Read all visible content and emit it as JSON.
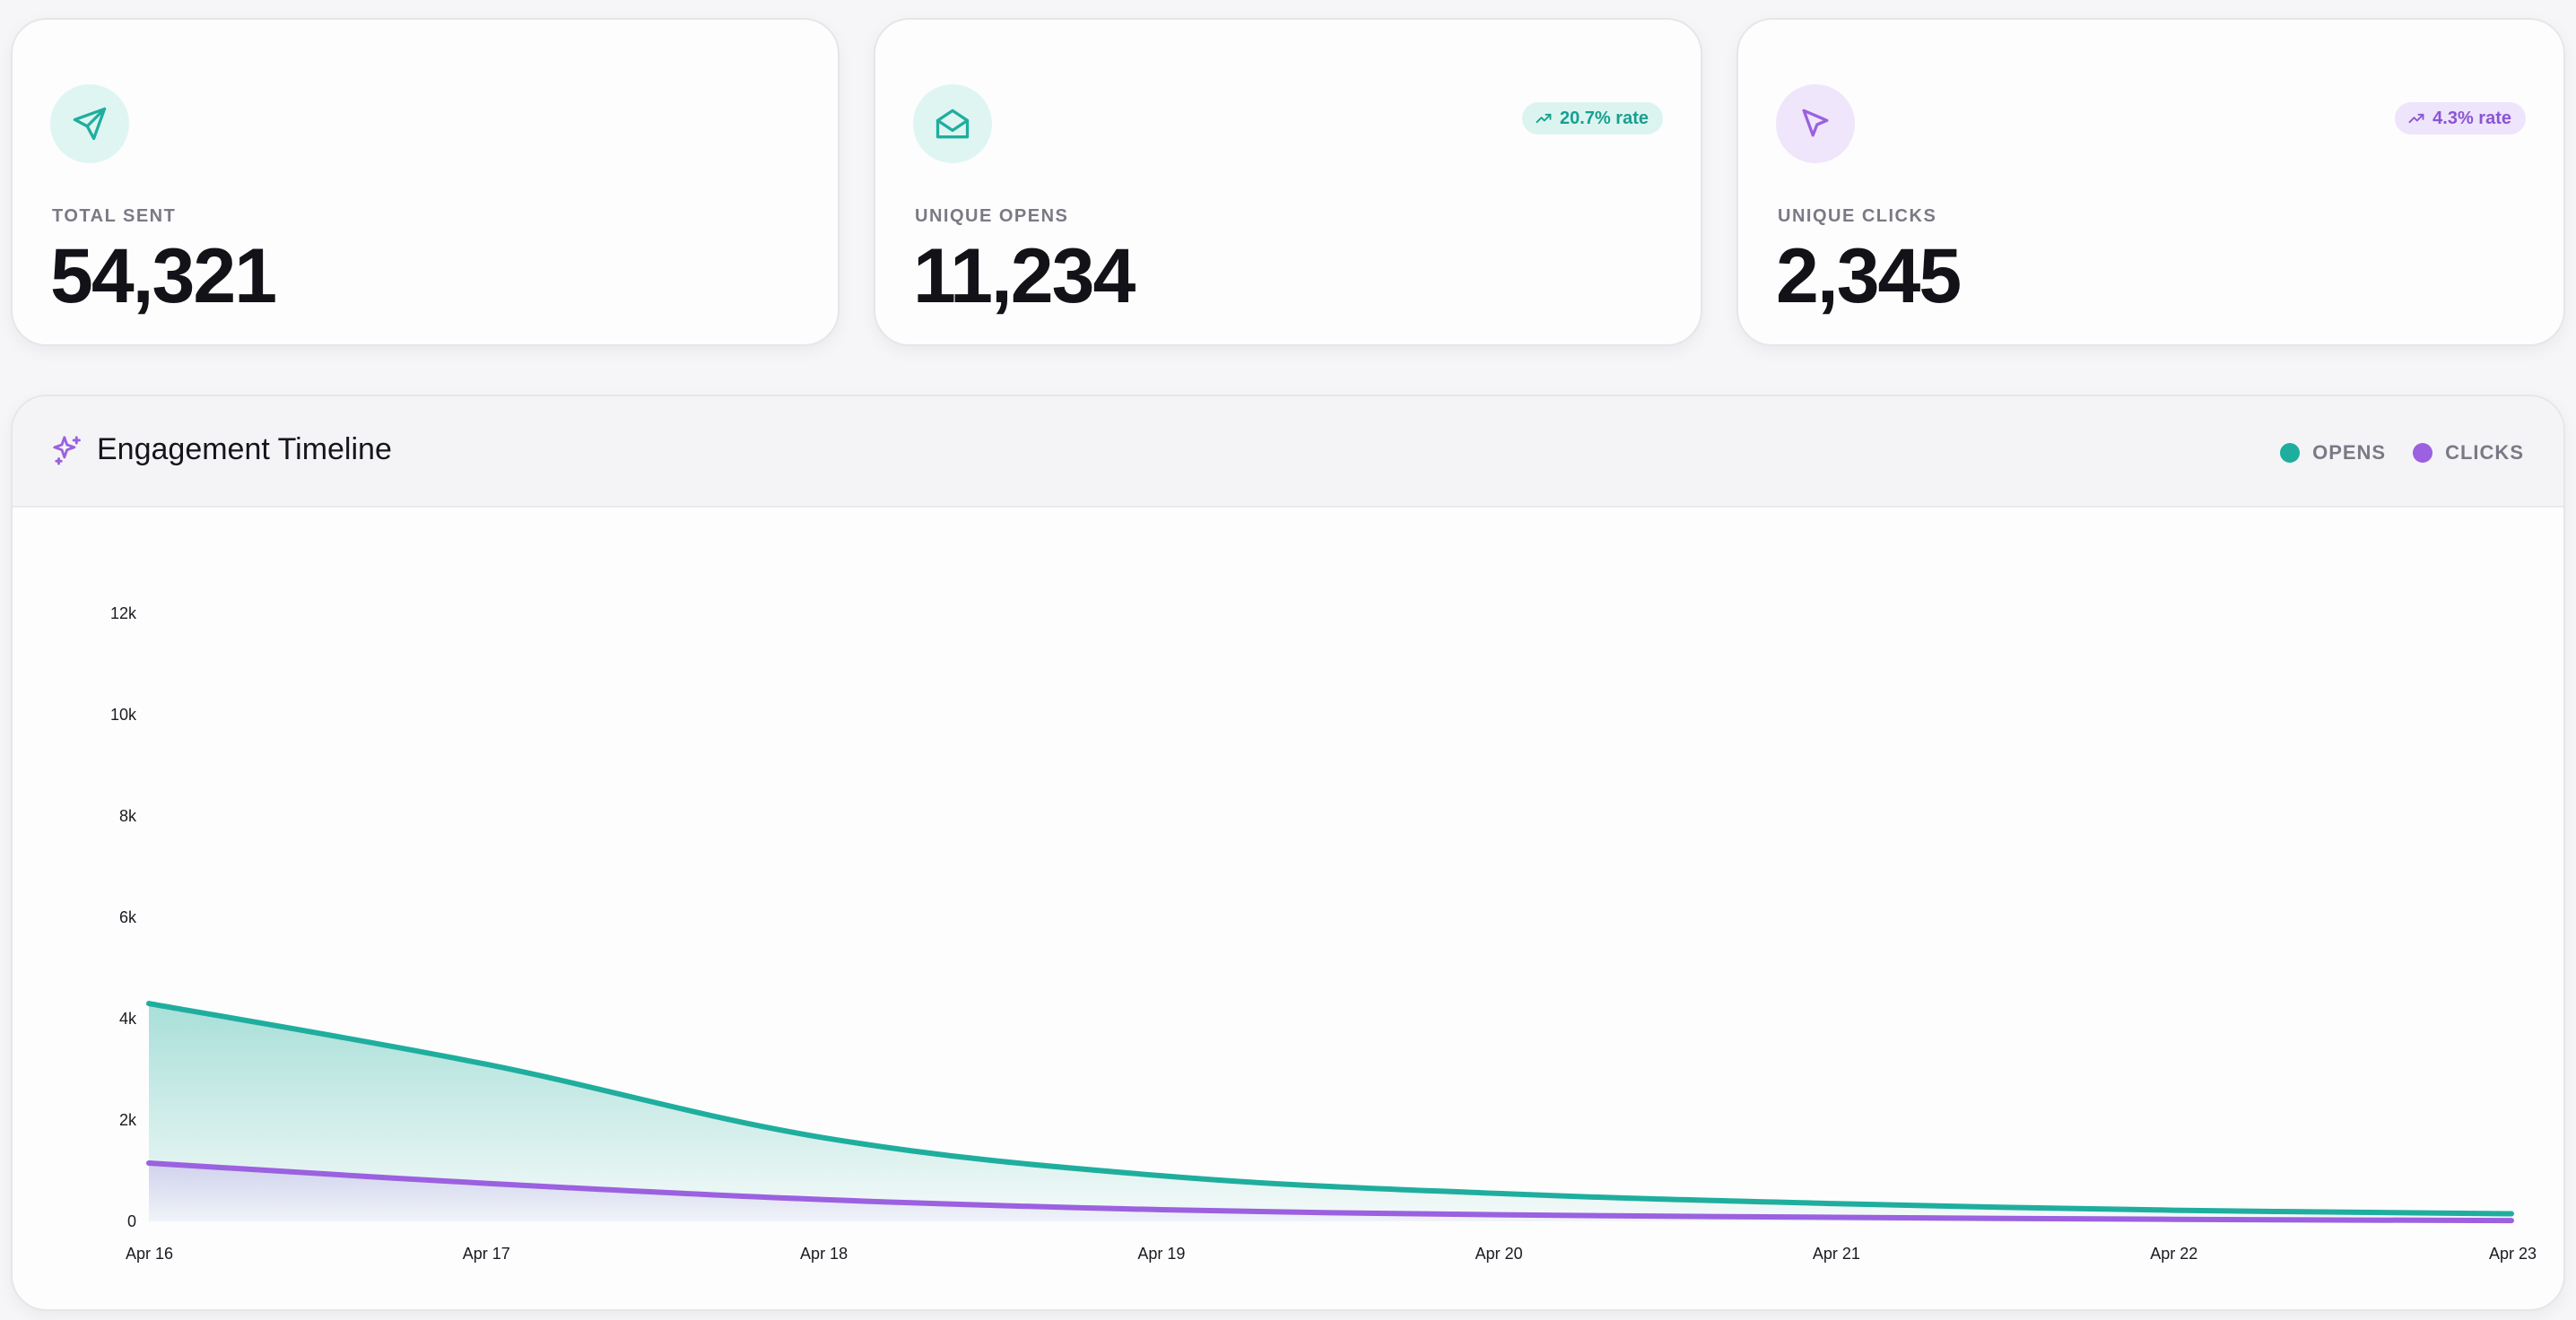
{
  "stats": {
    "total_sent": {
      "label": "TOTAL SENT",
      "value": "54,321",
      "icon": "send-icon"
    },
    "unique_opens": {
      "label": "UNIQUE OPENS",
      "value": "11,234",
      "icon": "mail-open-icon",
      "rate": "20.7% rate"
    },
    "unique_clicks": {
      "label": "UNIQUE CLICKS",
      "value": "2,345",
      "icon": "cursor-icon",
      "rate": "4.3% rate"
    }
  },
  "timeline": {
    "title": "Engagement Timeline",
    "icon": "sparkles-icon",
    "legend": [
      {
        "label": "OPENS",
        "color": "#1fae9e"
      },
      {
        "label": "CLICKS",
        "color": "#9b61e0"
      }
    ]
  },
  "colors": {
    "teal": "#1fae9e",
    "purple": "#9b61e0"
  },
  "chart_data": {
    "type": "area",
    "categories": [
      "Apr 16",
      "Apr 17",
      "Apr 18",
      "Apr 19",
      "Apr 20",
      "Apr 21",
      "Apr 22",
      "Apr 23"
    ],
    "series": [
      {
        "name": "OPENS",
        "values": [
          4300,
          3100,
          1650,
          900,
          550,
          350,
          220,
          150
        ]
      },
      {
        "name": "CLICKS",
        "values": [
          1150,
          750,
          430,
          230,
          130,
          80,
          40,
          15
        ]
      }
    ],
    "y_ticks": [
      "0",
      "2k",
      "4k",
      "6k",
      "8k",
      "10k",
      "12k"
    ],
    "ylim": [
      0,
      12000
    ],
    "grid": false,
    "legend_position": "top-right"
  }
}
